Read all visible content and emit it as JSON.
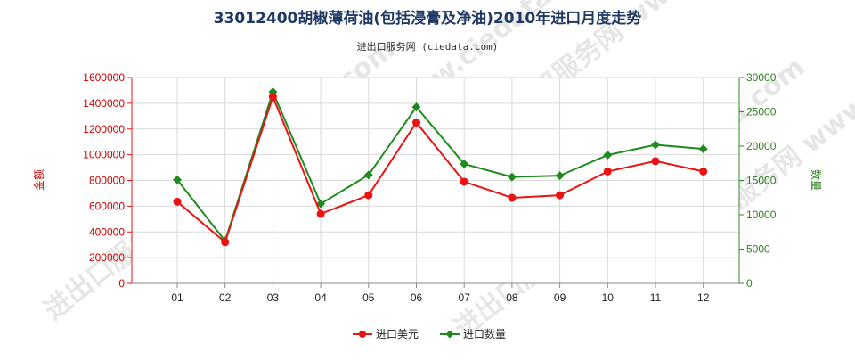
{
  "chart_data": {
    "type": "line",
    "title": "33012400胡椒薄荷油(包括浸膏及净油)2010年进口月度走势",
    "subtitle": "进出口服务网 (ciedata.com)",
    "categories": [
      "01",
      "02",
      "03",
      "04",
      "05",
      "06",
      "07",
      "08",
      "09",
      "10",
      "11",
      "12"
    ],
    "y_left": {
      "label": "金额",
      "ylim": [
        0,
        1600000
      ],
      "ticks": [
        "0",
        "200000",
        "400000",
        "600000",
        "800000",
        "1000000",
        "1200000",
        "1400000",
        "1600000"
      ],
      "color": "#ee1111"
    },
    "y_right": {
      "label": "数量",
      "ylim": [
        0,
        30000
      ],
      "ticks": [
        "0",
        "5000",
        "10000",
        "15000",
        "20000",
        "25000",
        "30000"
      ],
      "color": "#2f8b1f"
    },
    "series": [
      {
        "name": "进口美元",
        "axis": "left",
        "color": "#ee1111",
        "marker": "circle",
        "values": [
          635000,
          320000,
          1450000,
          540000,
          685000,
          1250000,
          790000,
          665000,
          685000,
          870000,
          950000,
          870000
        ]
      },
      {
        "name": "进口数量",
        "axis": "right",
        "color": "#1f8b1f",
        "marker": "diamond",
        "values": [
          15100,
          6200,
          27900,
          11600,
          15800,
          25700,
          17400,
          15500,
          15700,
          18700,
          20200,
          19600
        ]
      }
    ],
    "grid": true,
    "legend": "bottom-center",
    "watermark": "进出口服务网 www.ciedata.com"
  }
}
